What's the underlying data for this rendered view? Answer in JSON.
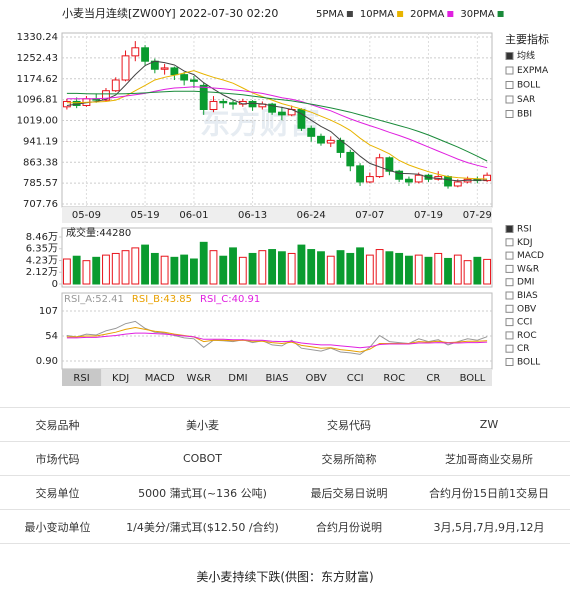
{
  "chart_data": [
    {
      "type": "candlestick",
      "title": "小麦当月连续[ZW00Y] 2022-07-30 02:20",
      "categories": [
        null,
        null,
        "05-09",
        null,
        null,
        null,
        null,
        null,
        "05-19",
        null,
        null,
        null,
        null,
        "06-01",
        null,
        null,
        null,
        null,
        null,
        "06-13",
        null,
        null,
        null,
        null,
        null,
        "06-24",
        null,
        null,
        null,
        null,
        null,
        "07-07",
        null,
        null,
        null,
        null,
        null,
        "07-19",
        null,
        null,
        null,
        null,
        "07-29",
        null
      ],
      "open": [
        1070,
        1090,
        1075,
        1100,
        1095,
        1130,
        1170,
        1260,
        1290,
        1240,
        1210,
        1215,
        1190,
        1170,
        1150,
        1060,
        1090,
        1085,
        1080,
        1090,
        1070,
        1080,
        1050,
        1040,
        1060,
        990,
        960,
        935,
        945,
        900,
        850,
        790,
        810,
        880,
        830,
        800,
        790,
        815,
        800,
        810,
        775,
        790,
        800,
        795
      ],
      "high": [
        1100,
        1105,
        1110,
        1120,
        1140,
        1180,
        1280,
        1315,
        1300,
        1250,
        1230,
        1220,
        1200,
        1185,
        1160,
        1110,
        1100,
        1095,
        1100,
        1095,
        1090,
        1085,
        1070,
        1075,
        1065,
        1000,
        970,
        960,
        955,
        910,
        860,
        825,
        895,
        885,
        835,
        810,
        825,
        820,
        830,
        815,
        800,
        810,
        810,
        825
      ],
      "low": [
        1060,
        1065,
        1070,
        1085,
        1090,
        1125,
        1165,
        1240,
        1225,
        1195,
        1190,
        1170,
        1150,
        1140,
        1040,
        1050,
        1065,
        1060,
        1070,
        1055,
        1060,
        1040,
        1020,
        1035,
        980,
        940,
        925,
        920,
        880,
        830,
        775,
        785,
        805,
        815,
        790,
        775,
        785,
        790,
        795,
        765,
        770,
        785,
        785,
        790
      ],
      "close": [
        1090,
        1075,
        1100,
        1095,
        1130,
        1170,
        1260,
        1290,
        1240,
        1210,
        1215,
        1190,
        1170,
        1165,
        1060,
        1090,
        1085,
        1080,
        1090,
        1070,
        1080,
        1050,
        1040,
        1060,
        990,
        960,
        935,
        945,
        900,
        850,
        790,
        810,
        880,
        830,
        800,
        790,
        815,
        800,
        810,
        775,
        790,
        800,
        795,
        815
      ],
      "up_color": "#e8141b",
      "down_color": "#0a9b2f",
      "ylim": [
        707.76,
        1330.24
      ],
      "yticks": [
        1330.24,
        1252.43,
        1174.62,
        1096.81,
        {
          "value": 1019,
          "label": "1019.00"
        },
        941.19,
        863.38,
        785.57,
        707.76
      ],
      "grid": true,
      "series": [
        {
          "name": "5PMA",
          "color": "#444444",
          "values": [
            1075,
            1080,
            1085,
            1090,
            1098,
            1114,
            1151,
            1190,
            1224,
            1240,
            1235,
            1226,
            1203,
            1190,
            1160,
            1136,
            1114,
            1096,
            1081,
            1083,
            1081,
            1074,
            1068,
            1060,
            1044,
            1020,
            997,
            978,
            946,
            918,
            886,
            859,
            846,
            833,
            822,
            821,
            819,
            806,
            803,
            798,
            794,
            796,
            796,
            797
          ]
        },
        {
          "name": "10PMA",
          "color": "#e8b400",
          "values": [
            1085,
            1085,
            1087,
            1088,
            1090,
            1095,
            1110,
            1130,
            1150,
            1170,
            1180,
            1188,
            1196,
            1205,
            1192,
            1180,
            1170,
            1158,
            1140,
            1122,
            1108,
            1095,
            1082,
            1072,
            1062,
            1050,
            1035,
            1020,
            1003,
            982,
            953,
            928,
            912,
            895,
            870,
            853,
            840,
            828,
            818,
            810,
            806,
            804,
            802,
            801
          ]
        },
        {
          "name": "20PMA",
          "color": "#e020e0",
          "values": [
            1100,
            1100,
            1100,
            1100,
            1102,
            1105,
            1110,
            1115,
            1120,
            1128,
            1135,
            1140,
            1142,
            1145,
            1143,
            1140,
            1137,
            1133,
            1130,
            1125,
            1120,
            1112,
            1104,
            1098,
            1090,
            1078,
            1066,
            1055,
            1040,
            1025,
            1012,
            1000,
            988,
            975,
            963,
            950,
            935,
            920,
            905,
            890,
            875,
            862,
            852,
            843
          ]
        },
        {
          "name": "30PMA",
          "color": "#1a8a3a",
          "values": [
            1120,
            1120,
            1119,
            1118,
            1118,
            1118,
            1119,
            1120,
            1122,
            1124,
            1126,
            1128,
            1128,
            1128,
            1126,
            1124,
            1121,
            1118,
            1115,
            1110,
            1105,
            1100,
            1096,
            1092,
            1086,
            1080,
            1073,
            1066,
            1058,
            1050,
            1040,
            1030,
            1020,
            1010,
            1000,
            990,
            978,
            965,
            950,
            935,
            920,
            903,
            886,
            868
          ]
        }
      ]
    },
    {
      "type": "bar",
      "title": "成交量:44280",
      "values": [
        45000,
        50000,
        42000,
        48000,
        52000,
        55000,
        60000,
        65000,
        70000,
        55000,
        50000,
        48000,
        52000,
        45000,
        75000,
        60000,
        50000,
        65000,
        48000,
        55000,
        60000,
        62000,
        58000,
        55000,
        70000,
        62000,
        58000,
        50000,
        60000,
        55000,
        65000,
        52000,
        62000,
        58000,
        55000,
        50000,
        52000,
        48000,
        55000,
        46000,
        52000,
        42000,
        48000,
        44280
      ],
      "ylim": [
        0,
        84600
      ],
      "yticks": [
        0,
        {
          "value": 21200,
          "label": "2.12万"
        },
        {
          "value": 42300,
          "label": "4.23万"
        },
        {
          "value": 63500,
          "label": "6.35万"
        },
        {
          "value": 84600,
          "label": "8.46万"
        }
      ]
    },
    {
      "type": "line",
      "ylim": [
        0.9,
        107
      ],
      "yticks": [
        {
          "value": 0.9,
          "label": "0.90"
        },
        54,
        107
      ],
      "series": [
        {
          "name": "RSI_A",
          "label": "RSI_A:52.41",
          "color": "#999999",
          "values": [
            55,
            52,
            58,
            56,
            65,
            70,
            80,
            85,
            70,
            62,
            60,
            55,
            50,
            48,
            30,
            45,
            44,
            42,
            46,
            40,
            44,
            35,
            33,
            45,
            28,
            25,
            22,
            28,
            20,
            18,
            15,
            30,
            55,
            42,
            40,
            38,
            48,
            42,
            46,
            35,
            42,
            48,
            45,
            52.41
          ]
        },
        {
          "name": "RSI_B",
          "label": "RSI_B:43.85",
          "color": "#e8a000",
          "values": [
            52,
            52,
            54,
            54,
            58,
            62,
            68,
            72,
            68,
            64,
            62,
            58,
            55,
            52,
            42,
            45,
            45,
            44,
            45,
            43,
            43,
            40,
            38,
            41,
            34,
            31,
            28,
            29,
            25,
            23,
            20,
            26,
            38,
            38,
            38,
            38,
            42,
            41,
            43,
            40,
            41,
            43,
            43,
            43.85
          ]
        },
        {
          "name": "RSI_C",
          "label": "RSI_C:40.91",
          "color": "#e020e0",
          "values": [
            50,
            50,
            51,
            51,
            53,
            55,
            58,
            60,
            60,
            59,
            58,
            56,
            54,
            52,
            47,
            47,
            47,
            46,
            46,
            45,
            45,
            43,
            42,
            43,
            39,
            37,
            35,
            35,
            33,
            31,
            29,
            31,
            36,
            37,
            37,
            37,
            39,
            39,
            40,
            39,
            39,
            40,
            40,
            40.91
          ]
        }
      ]
    }
  ],
  "ui": {
    "watermark": "东方财富",
    "tabs": [
      "RSI",
      "KDJ",
      "MACD",
      "W&R",
      "DMI",
      "BIAS",
      "OBV",
      "CCI",
      "ROC",
      "CR",
      "BOLL"
    ],
    "main_title": "主要指标",
    "main_items": [
      "均线",
      "EXPMA",
      "BOLL",
      "SAR",
      "BBI"
    ],
    "sub_items": [
      "RSI",
      "KDJ",
      "MACD",
      "W&R",
      "DMI",
      "BIAS",
      "OBV",
      "CCI",
      "ROC",
      "CR",
      "BOLL"
    ]
  },
  "table": {
    "rows": [
      [
        "交易品种",
        "美小麦",
        "交易代码",
        "ZW"
      ],
      [
        "市场代码",
        "COBOT",
        "交易所简称",
        "芝加哥商业交易所"
      ],
      [
        "交易单位",
        "5000 蒲式耳(~136 公吨)",
        "最后交易日说明",
        "合约月份15日前1交易日"
      ],
      [
        "最小变动单位",
        "1/4美分/蒲式耳($12.50 /合约)",
        "合约月份说明",
        "3月,5月,7月,9月,12月"
      ]
    ]
  },
  "caption": "美小麦持续下跌(供图：东方财富)"
}
